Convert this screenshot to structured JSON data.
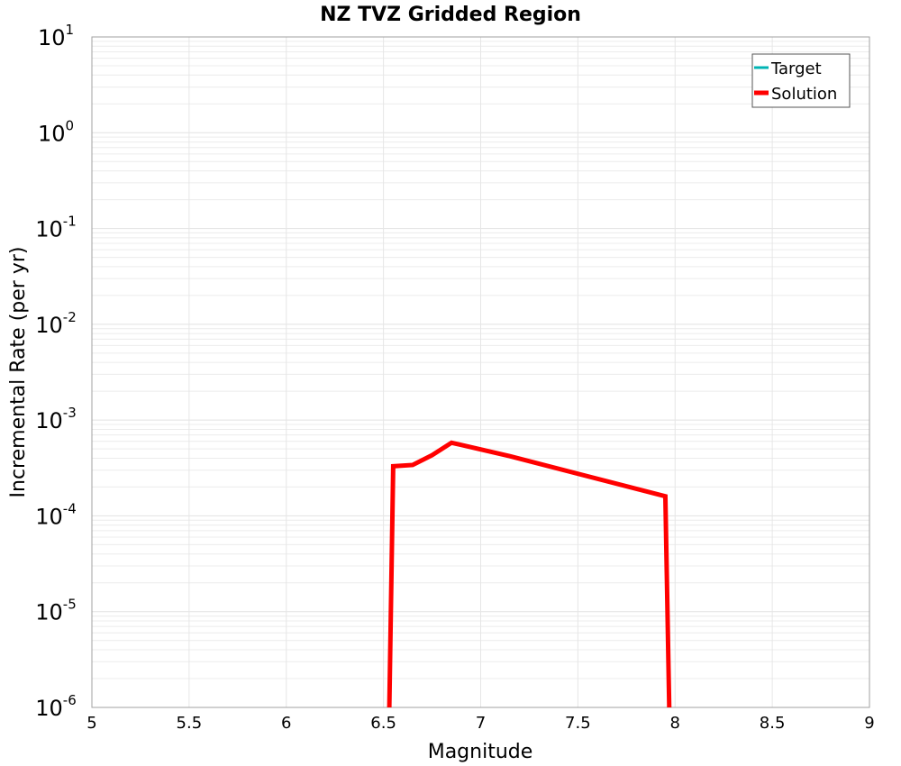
{
  "chart_data": {
    "type": "line",
    "title": "NZ TVZ Gridded Region",
    "xlabel": "Magnitude",
    "ylabel": "Incremental Rate (per yr)",
    "xlim": [
      5,
      9
    ],
    "ylim": [
      1e-06,
      10
    ],
    "yscale": "log",
    "grid": true,
    "legend_position": "upper right",
    "x_ticks": [
      "5",
      "5.5",
      "6",
      "6.5",
      "7",
      "7.5",
      "8",
      "8.5",
      "9"
    ],
    "y_ticks": [
      {
        "base": "10",
        "exp": "1"
      },
      {
        "base": "10",
        "exp": "0"
      },
      {
        "base": "10",
        "exp": "-1"
      },
      {
        "base": "10",
        "exp": "-2"
      },
      {
        "base": "10",
        "exp": "-3"
      },
      {
        "base": "10",
        "exp": "-4"
      },
      {
        "base": "10",
        "exp": "-5"
      },
      {
        "base": "10",
        "exp": "-6"
      }
    ],
    "series": [
      {
        "name": "Target",
        "color": "#00b4b4",
        "x": [],
        "y": []
      },
      {
        "name": "Solution",
        "color": "#ff0000",
        "x": [
          6.53,
          6.55,
          6.65,
          6.75,
          6.85,
          7.15,
          7.95,
          7.97
        ],
        "y": [
          1e-06,
          0.00033,
          0.00034,
          0.00043,
          0.00058,
          0.00042,
          0.00016,
          1e-06
        ]
      }
    ]
  }
}
